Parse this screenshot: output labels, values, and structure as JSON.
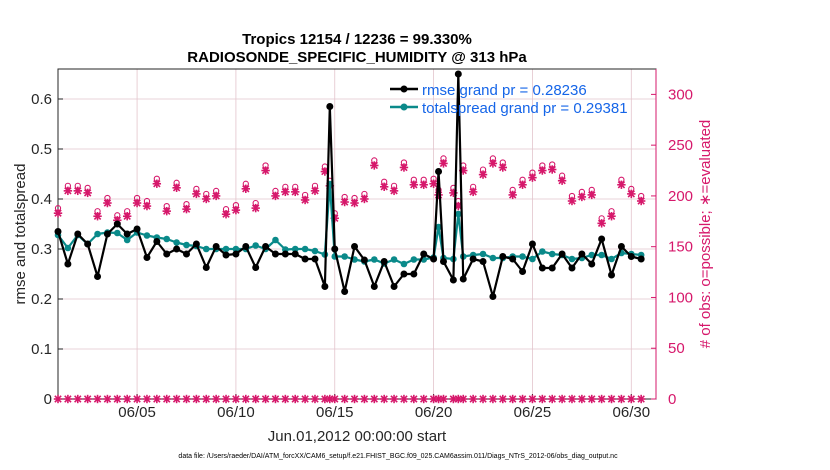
{
  "colors": {
    "rmse": "#000000",
    "spread": "#0a8a8a",
    "obs": "#d6186b",
    "legend_text": "#1565e8",
    "grid": "#e3c4cc"
  },
  "chart_data": {
    "type": "line",
    "title_line1": "Tropics 12154 / 12236 = 99.330%",
    "title_line2": "RADIOSONDE_SPECIFIC_HUMIDITY @ 313 hPa",
    "xlabel": "Jun.01,2012 00:00:00 start",
    "ylabel_left": "rmse and totalspread",
    "ylabel_right": "# of obs: o=possible; ∗=evaluated",
    "footer": "data file: /Users/raeder/DAI/ATM_forcXX/CAM6_setup/f.e21.FHIST_BGC.f09_025.CAM6assim.011/Diags_NTrS_2012-06/obs_diag_output.nc",
    "xlim": [
      1.0,
      31.25
    ],
    "ylim_left": [
      0,
      0.66
    ],
    "ylim_right": [
      0,
      325
    ],
    "x_tick_values": [
      5,
      10,
      15,
      20,
      25,
      30
    ],
    "x_tick_labels": [
      "06/05",
      "06/10",
      "06/15",
      "06/20",
      "06/25",
      "06/30"
    ],
    "y_left_ticks": [
      "0",
      "0.1",
      "0.2",
      "0.3",
      "0.4",
      "0.5",
      "0.6"
    ],
    "y_right_ticks": [
      "0",
      "50",
      "100",
      "150",
      "200",
      "250",
      "300"
    ],
    "legend": [
      {
        "name": "rmse grand pr = 0.28236"
      },
      {
        "name": "totalspread grand pr = 0.29381"
      }
    ],
    "series": [
      {
        "name": "rmse",
        "points": [
          [
            1.0,
            0.335
          ],
          [
            1.5,
            0.27
          ],
          [
            2.0,
            0.33
          ],
          [
            2.5,
            0.31
          ],
          [
            3.0,
            0.245
          ],
          [
            3.5,
            0.33
          ],
          [
            4.0,
            0.35
          ],
          [
            4.5,
            0.33
          ],
          [
            5.0,
            0.34
          ],
          [
            5.5,
            0.283
          ],
          [
            6.0,
            0.315
          ],
          [
            6.5,
            0.29
          ],
          [
            7.0,
            0.3
          ],
          [
            7.5,
            0.29
          ],
          [
            8.0,
            0.31
          ],
          [
            8.5,
            0.263
          ],
          [
            9.0,
            0.305
          ],
          [
            9.5,
            0.288
          ],
          [
            10.0,
            0.29
          ],
          [
            10.5,
            0.305
          ],
          [
            11.0,
            0.263
          ],
          [
            11.5,
            0.305
          ],
          [
            12.0,
            0.29
          ],
          [
            12.5,
            0.29
          ],
          [
            13.0,
            0.29
          ],
          [
            13.5,
            0.28
          ],
          [
            14.0,
            0.28
          ],
          [
            14.5,
            0.225
          ],
          [
            14.75,
            0.585
          ],
          [
            15.0,
            0.3
          ],
          [
            15.5,
            0.215
          ],
          [
            16.0,
            0.305
          ],
          [
            16.5,
            0.278
          ],
          [
            17.0,
            0.225
          ],
          [
            17.5,
            0.275
          ],
          [
            18.0,
            0.225
          ],
          [
            18.5,
            0.25
          ],
          [
            19.0,
            0.25
          ],
          [
            19.5,
            0.29
          ],
          [
            20.0,
            0.28
          ],
          [
            20.25,
            0.455
          ],
          [
            20.5,
            0.275
          ],
          [
            21.0,
            0.238
          ],
          [
            21.25,
            0.65
          ],
          [
            21.5,
            0.24
          ],
          [
            22.0,
            0.28
          ],
          [
            22.5,
            0.275
          ],
          [
            23.0,
            0.205
          ],
          [
            23.5,
            0.285
          ],
          [
            24.0,
            0.28
          ],
          [
            24.5,
            0.255
          ],
          [
            25.0,
            0.31
          ],
          [
            25.5,
            0.262
          ],
          [
            26.0,
            0.262
          ],
          [
            26.5,
            0.29
          ],
          [
            27.0,
            0.262
          ],
          [
            27.5,
            0.29
          ],
          [
            28.0,
            0.27
          ],
          [
            28.5,
            0.32
          ],
          [
            29.0,
            0.248
          ],
          [
            29.5,
            0.305
          ],
          [
            30.0,
            0.285
          ],
          [
            30.5,
            0.28
          ]
        ]
      },
      {
        "name": "totalspread",
        "points": [
          [
            1.0,
            0.328
          ],
          [
            1.5,
            0.302
          ],
          [
            2.0,
            0.328
          ],
          [
            2.5,
            0.31
          ],
          [
            3.0,
            0.33
          ],
          [
            3.5,
            0.333
          ],
          [
            4.0,
            0.332
          ],
          [
            4.5,
            0.318
          ],
          [
            5.0,
            0.333
          ],
          [
            5.5,
            0.327
          ],
          [
            6.0,
            0.323
          ],
          [
            6.5,
            0.32
          ],
          [
            7.0,
            0.313
          ],
          [
            7.5,
            0.308
          ],
          [
            8.0,
            0.306
          ],
          [
            8.5,
            0.3
          ],
          [
            9.0,
            0.3
          ],
          [
            9.5,
            0.3
          ],
          [
            10.0,
            0.3
          ],
          [
            10.5,
            0.3
          ],
          [
            11.0,
            0.307
          ],
          [
            11.5,
            0.3
          ],
          [
            12.0,
            0.318
          ],
          [
            12.5,
            0.299
          ],
          [
            13.0,
            0.3
          ],
          [
            13.5,
            0.3
          ],
          [
            14.0,
            0.296
          ],
          [
            14.5,
            0.289
          ],
          [
            14.75,
            0.43
          ],
          [
            15.0,
            0.285
          ],
          [
            15.5,
            0.285
          ],
          [
            16.0,
            0.279
          ],
          [
            16.5,
            0.275
          ],
          [
            17.0,
            0.279
          ],
          [
            17.5,
            0.271
          ],
          [
            18.0,
            0.279
          ],
          [
            18.5,
            0.27
          ],
          [
            19.0,
            0.279
          ],
          [
            19.5,
            0.279
          ],
          [
            20.0,
            0.283
          ],
          [
            20.25,
            0.344
          ],
          [
            20.5,
            0.282
          ],
          [
            21.0,
            0.28
          ],
          [
            21.25,
            0.37
          ],
          [
            21.5,
            0.285
          ],
          [
            22.0,
            0.288
          ],
          [
            22.5,
            0.29
          ],
          [
            23.0,
            0.282
          ],
          [
            23.5,
            0.282
          ],
          [
            24.0,
            0.285
          ],
          [
            24.5,
            0.285
          ],
          [
            25.0,
            0.28
          ],
          [
            25.5,
            0.295
          ],
          [
            26.0,
            0.29
          ],
          [
            26.5,
            0.288
          ],
          [
            27.0,
            0.28
          ],
          [
            27.5,
            0.282
          ],
          [
            28.0,
            0.288
          ],
          [
            28.5,
            0.288
          ],
          [
            29.0,
            0.28
          ],
          [
            29.5,
            0.292
          ],
          [
            30.0,
            0.29
          ],
          [
            30.5,
            0.288
          ]
        ]
      }
    ],
    "obs_evaluated": [
      [
        1.0,
        183
      ],
      [
        1.5,
        205
      ],
      [
        2.0,
        205
      ],
      [
        2.5,
        203
      ],
      [
        3.0,
        180
      ],
      [
        3.5,
        193
      ],
      [
        4.0,
        176
      ],
      [
        4.5,
        180
      ],
      [
        5.0,
        193
      ],
      [
        5.5,
        190
      ],
      [
        6.0,
        212
      ],
      [
        6.5,
        185
      ],
      [
        7.0,
        208
      ],
      [
        7.5,
        187
      ],
      [
        8.0,
        202
      ],
      [
        8.5,
        197
      ],
      [
        9.0,
        200
      ],
      [
        9.5,
        182
      ],
      [
        10.0,
        186
      ],
      [
        10.5,
        207
      ],
      [
        11.0,
        188
      ],
      [
        11.5,
        225
      ],
      [
        12.0,
        200
      ],
      [
        12.5,
        204
      ],
      [
        13.0,
        204
      ],
      [
        13.5,
        196
      ],
      [
        14.0,
        205
      ],
      [
        14.5,
        224
      ],
      [
        14.75,
        210
      ],
      [
        15.0,
        178
      ],
      [
        15.5,
        194
      ],
      [
        16.0,
        193
      ],
      [
        16.5,
        197
      ],
      [
        17.0,
        230
      ],
      [
        17.5,
        209
      ],
      [
        18.0,
        205
      ],
      [
        18.5,
        228
      ],
      [
        19.0,
        211
      ],
      [
        19.5,
        211
      ],
      [
        20.0,
        212
      ],
      [
        20.25,
        201
      ],
      [
        20.5,
        232
      ],
      [
        21.0,
        203
      ],
      [
        21.25,
        190
      ],
      [
        21.5,
        225
      ],
      [
        22.0,
        204
      ],
      [
        22.5,
        221
      ],
      [
        23.0,
        232
      ],
      [
        23.5,
        228
      ],
      [
        24.0,
        201
      ],
      [
        24.5,
        211
      ],
      [
        25.0,
        218
      ],
      [
        25.5,
        225
      ],
      [
        26.0,
        226
      ],
      [
        26.5,
        215
      ],
      [
        27.0,
        195
      ],
      [
        27.5,
        199
      ],
      [
        28.0,
        201
      ],
      [
        28.5,
        173
      ],
      [
        29.0,
        180
      ],
      [
        29.5,
        211
      ],
      [
        30.0,
        202
      ],
      [
        30.5,
        195
      ]
    ],
    "obs_possible_max": 325
  }
}
